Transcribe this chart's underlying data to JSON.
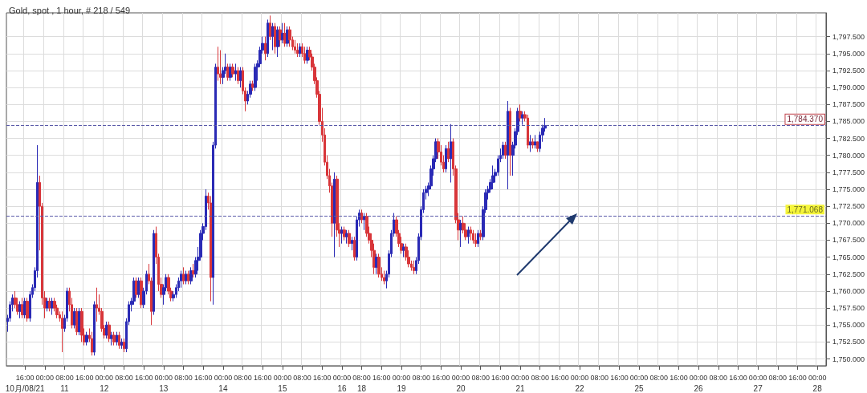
{
  "chart_data": {
    "type": "candlestick",
    "title": "Gold, spot , 1 hour, # 218 / 549",
    "categories": [
      null,
      null,
      null,
      null,
      null,
      null,
      null,
      "16:00\n10月/08/21",
      null,
      null,
      null,
      null,
      null,
      null,
      null,
      "00:00",
      null,
      null,
      null,
      null,
      null,
      null,
      null,
      "08:00\n11",
      null,
      null,
      null,
      null,
      null,
      null,
      null,
      "16:00",
      null,
      null,
      null,
      null,
      null,
      null,
      null,
      "00:00\n12",
      null,
      null,
      null,
      null,
      null,
      null,
      null,
      "08:00",
      null,
      null,
      null,
      null,
      null,
      null,
      null,
      "16:00",
      null,
      null,
      null,
      null,
      null,
      null,
      null,
      "00:00\n13",
      null,
      null,
      null,
      null,
      null,
      null,
      null,
      "08:00",
      null,
      null,
      null,
      null,
      null,
      null,
      null,
      "16:00",
      null,
      null,
      null,
      null,
      null,
      null,
      null,
      "00:00\n14",
      null,
      null,
      null,
      null,
      null,
      null,
      null,
      "08:00",
      null,
      null,
      null,
      null,
      null,
      null,
      null,
      "16:00",
      null,
      null,
      null,
      null,
      null,
      null,
      null,
      "00:00\n15",
      null,
      null,
      null,
      null,
      null,
      null,
      null,
      "08:00",
      null,
      null,
      null,
      null,
      null,
      null,
      null,
      "16:00",
      null,
      null,
      null,
      null,
      null,
      null,
      null,
      "00:00\n16",
      null,
      null,
      null,
      null,
      null,
      null,
      null,
      "08:00\n18",
      null,
      null,
      null,
      null,
      null,
      null,
      null,
      "16:00",
      null,
      null,
      null,
      null,
      null,
      null,
      null,
      "00:00\n19",
      null,
      null,
      null,
      null,
      null,
      null,
      null,
      "08:00",
      null,
      null,
      null,
      null,
      null,
      null,
      null,
      "16:00",
      null,
      null,
      null,
      null,
      null,
      null,
      null,
      "00:00\n20",
      null,
      null,
      null,
      null,
      null,
      null,
      null,
      "08:00",
      null,
      null,
      null,
      null,
      null,
      null,
      null,
      "16:00",
      null,
      null,
      null,
      null,
      null,
      null,
      null,
      "00:00\n21",
      null,
      null,
      null,
      null,
      null,
      null,
      null,
      "08:00",
      null,
      null,
      null,
      null,
      null,
      null,
      null,
      "16:00",
      null,
      null,
      null,
      null,
      null,
      null,
      null,
      "00:00\n22",
      null,
      null,
      null,
      null,
      null,
      null,
      null,
      "08:00",
      null,
      null,
      null,
      null,
      null,
      null,
      null,
      "16:00",
      null,
      null,
      null,
      null,
      null,
      null,
      null,
      "00:00\n25",
      null,
      null,
      null,
      null,
      null,
      null,
      null,
      "08:00",
      null,
      null,
      null,
      null,
      null,
      null,
      null,
      "16:00",
      null,
      null,
      null,
      null,
      null,
      null,
      null,
      "00:00\n26",
      null,
      null,
      null,
      null,
      null,
      null,
      null,
      "08:00",
      null,
      null,
      null,
      null,
      null,
      null,
      null,
      "16:00",
      null,
      null,
      null,
      null,
      null,
      null,
      null,
      "00:00\n27",
      null,
      null,
      null,
      null,
      null,
      null,
      null,
      "08:00",
      null,
      null,
      null,
      null,
      null,
      null,
      null,
      "16:00",
      null,
      null,
      null,
      null,
      null,
      null,
      null,
      "00:00\n28",
      null,
      null,
      null
    ],
    "ohlc": [
      [
        1755.5,
        1756.5,
        1754,
        1756
      ],
      [
        1756,
        1758.5,
        1755.5,
        1758
      ],
      [
        1758,
        1759.5,
        1757,
        1759
      ],
      [
        1759,
        1760,
        1757.5,
        1758
      ],
      [
        1758,
        1759,
        1756.5,
        1757
      ],
      [
        1757,
        1758.5,
        1756,
        1758
      ],
      [
        1758,
        1759,
        1756,
        1756.5
      ],
      [
        1756.5,
        1759,
        1756,
        1758.5
      ],
      [
        1758.5,
        1759,
        1755.5,
        1756
      ],
      [
        1756,
        1760,
        1755.5,
        1759.5
      ],
      [
        1759.5,
        1761,
        1759,
        1760.5
      ],
      [
        1760.5,
        1763.5,
        1760,
        1763
      ],
      [
        1763,
        1781.5,
        1762,
        1776
      ],
      [
        1776,
        1777,
        1766,
        1772.5
      ],
      [
        1772.5,
        1773,
        1758,
        1759
      ],
      [
        1759,
        1760,
        1756,
        1757.5
      ],
      [
        1757.5,
        1759,
        1757,
        1758.5
      ],
      [
        1758.5,
        1759,
        1757,
        1757.5
      ],
      [
        1757.5,
        1759,
        1756.5,
        1758.5
      ],
      [
        1758.5,
        1759,
        1757,
        1757.5
      ],
      [
        1757.5,
        1758,
        1756,
        1756.5
      ],
      [
        1756.5,
        1757,
        1755.5,
        1756
      ],
      [
        1756,
        1757,
        1751,
        1754.5
      ],
      [
        1754.5,
        1756.5,
        1754,
        1756
      ],
      [
        1756,
        1760.5,
        1755.5,
        1760
      ],
      [
        1760,
        1760.5,
        1757,
        1758
      ],
      [
        1758,
        1759,
        1754.5,
        1755
      ],
      [
        1755,
        1757.5,
        1754.5,
        1757
      ],
      [
        1757,
        1757.5,
        1753.5,
        1754
      ],
      [
        1754,
        1757.5,
        1753.5,
        1757
      ],
      [
        1757,
        1757.5,
        1752.5,
        1753.5
      ],
      [
        1753.5,
        1754.5,
        1752,
        1752.5
      ],
      [
        1752.5,
        1754,
        1752,
        1753.5
      ],
      [
        1753.5,
        1754.5,
        1752.5,
        1753
      ],
      [
        1753,
        1754,
        1750.5,
        1751
      ],
      [
        1751,
        1758.5,
        1750.5,
        1758
      ],
      [
        1758,
        1760.5,
        1755.5,
        1757.5
      ],
      [
        1757.5,
        1759.5,
        1756.5,
        1757
      ],
      [
        1757,
        1757.5,
        1754,
        1754.5
      ],
      [
        1754.5,
        1755,
        1753,
        1753.5
      ],
      [
        1753.5,
        1755.5,
        1753,
        1755
      ],
      [
        1755,
        1755.5,
        1752.5,
        1753
      ],
      [
        1753,
        1754,
        1752,
        1753.5
      ],
      [
        1753.5,
        1754,
        1752,
        1752.5
      ],
      [
        1752.5,
        1754,
        1752,
        1753.5
      ],
      [
        1753.5,
        1754,
        1751.5,
        1752
      ],
      [
        1752,
        1753,
        1751.5,
        1752.5
      ],
      [
        1752.5,
        1753,
        1751,
        1751.5
      ],
      [
        1751.5,
        1756,
        1751,
        1755.5
      ],
      [
        1755.5,
        1758.5,
        1755,
        1758
      ],
      [
        1758,
        1759,
        1757,
        1758.5
      ],
      [
        1758.5,
        1762,
        1758,
        1761.5
      ],
      [
        1761.5,
        1762,
        1759,
        1759.5
      ],
      [
        1759.5,
        1762,
        1759,
        1761.5
      ],
      [
        1761.5,
        1762,
        1757.5,
        1758
      ],
      [
        1758,
        1760.5,
        1757.5,
        1760
      ],
      [
        1760,
        1763,
        1759.5,
        1762.5
      ],
      [
        1762.5,
        1764,
        1761,
        1761.5
      ],
      [
        1761.5,
        1762,
        1755,
        1757
      ],
      [
        1757,
        1769,
        1756.5,
        1768.5
      ],
      [
        1768.5,
        1769.5,
        1764,
        1765
      ],
      [
        1765,
        1765.5,
        1760,
        1761
      ],
      [
        1761,
        1762,
        1759,
        1759.5
      ],
      [
        1759.5,
        1761,
        1758,
        1760.5
      ],
      [
        1760.5,
        1762.5,
        1760,
        1762
      ],
      [
        1762,
        1762.5,
        1759.5,
        1760
      ],
      [
        1760,
        1760.5,
        1758.5,
        1759
      ],
      [
        1759,
        1760,
        1758.5,
        1759.5
      ],
      [
        1759.5,
        1761,
        1759,
        1760.5
      ],
      [
        1760.5,
        1762,
        1760,
        1761.5
      ],
      [
        1761.5,
        1763,
        1760.5,
        1762.5
      ],
      [
        1762.5,
        1763.5,
        1761,
        1761.5
      ],
      [
        1761.5,
        1763,
        1761,
        1762.5
      ],
      [
        1762.5,
        1763,
        1761,
        1761.5
      ],
      [
        1761.5,
        1763.5,
        1761,
        1763
      ],
      [
        1763,
        1764,
        1762,
        1762.5
      ],
      [
        1762.5,
        1765,
        1762,
        1764.5
      ],
      [
        1764.5,
        1766.5,
        1763,
        1765
      ],
      [
        1765,
        1769,
        1764.5,
        1768.5
      ],
      [
        1768.5,
        1770,
        1767.5,
        1769.5
      ],
      [
        1769.5,
        1775,
        1769,
        1774
      ],
      [
        1774,
        1774.5,
        1772,
        1773
      ],
      [
        1773,
        1774,
        1758.5,
        1762
      ],
      [
        1762,
        1782,
        1758,
        1781.5
      ],
      [
        1781.5,
        1793.5,
        1781,
        1793
      ],
      [
        1793,
        1796,
        1791,
        1792
      ],
      [
        1792,
        1795.5,
        1790.5,
        1791.5
      ],
      [
        1791.5,
        1793,
        1790.5,
        1792.5
      ],
      [
        1792.5,
        1795,
        1792,
        1793
      ],
      [
        1793,
        1793.5,
        1791,
        1791.5
      ],
      [
        1791.5,
        1793.5,
        1791,
        1793
      ],
      [
        1793,
        1793.5,
        1791.5,
        1792
      ],
      [
        1792,
        1793.5,
        1791,
        1792.5
      ],
      [
        1792.5,
        1793,
        1790.5,
        1791
      ],
      [
        1791,
        1793,
        1790,
        1792.5
      ],
      [
        1792.5,
        1793,
        1789,
        1789.5
      ],
      [
        1789.5,
        1790,
        1786.5,
        1788
      ],
      [
        1788,
        1789.5,
        1787.5,
        1789
      ],
      [
        1789,
        1791,
        1788.5,
        1790.5
      ],
      [
        1790.5,
        1791,
        1789.5,
        1790
      ],
      [
        1790,
        1793.5,
        1789.5,
        1793
      ],
      [
        1793,
        1794,
        1791,
        1793.5
      ],
      [
        1793.5,
        1796,
        1793,
        1795.5
      ],
      [
        1795.5,
        1797.5,
        1795,
        1796.5
      ],
      [
        1796.5,
        1797.5,
        1794,
        1795
      ],
      [
        1795,
        1800,
        1794.5,
        1799.5
      ],
      [
        1799.5,
        1800.6,
        1797,
        1797.5
      ],
      [
        1797.5,
        1799.5,
        1795.5,
        1799
      ],
      [
        1799,
        1799.5,
        1795,
        1796
      ],
      [
        1796,
        1799,
        1794.5,
        1798.5
      ],
      [
        1798.5,
        1799,
        1796,
        1797
      ],
      [
        1797,
        1799.5,
        1796.5,
        1798
      ],
      [
        1798,
        1799.5,
        1796,
        1796.5
      ],
      [
        1796.5,
        1799,
        1796,
        1798.5
      ],
      [
        1798.5,
        1799,
        1796,
        1797
      ],
      [
        1797,
        1797.5,
        1795.5,
        1796
      ],
      [
        1796,
        1797,
        1795,
        1795.5
      ],
      [
        1795.5,
        1796.5,
        1794.5,
        1795
      ],
      [
        1795,
        1796.5,
        1794.5,
        1796
      ],
      [
        1796,
        1796.5,
        1794.5,
        1795
      ],
      [
        1795,
        1796,
        1793.5,
        1794
      ],
      [
        1794,
        1796,
        1793.5,
        1795.5
      ],
      [
        1795.5,
        1796,
        1794,
        1794.5
      ],
      [
        1794.5,
        1795,
        1792.5,
        1793
      ],
      [
        1793,
        1793.5,
        1790.5,
        1791
      ],
      [
        1791,
        1791.5,
        1788.5,
        1789
      ],
      [
        1789,
        1789.5,
        1784.5,
        1785
      ],
      [
        1785,
        1787,
        1782,
        1783
      ],
      [
        1783,
        1784,
        1778.5,
        1779
      ],
      [
        1779,
        1780,
        1776.5,
        1777
      ],
      [
        1777,
        1778,
        1774.5,
        1775.5
      ],
      [
        1775.5,
        1776,
        1768,
        1770
      ],
      [
        1770,
        1777.5,
        1765,
        1776.5
      ],
      [
        1776.5,
        1777,
        1768,
        1769
      ],
      [
        1769,
        1770,
        1766.5,
        1768.5
      ],
      [
        1768.5,
        1769.5,
        1767,
        1769
      ],
      [
        1769,
        1769.5,
        1767.5,
        1768
      ],
      [
        1768,
        1769,
        1767,
        1768.5
      ],
      [
        1768.5,
        1769,
        1766.5,
        1767
      ],
      [
        1767,
        1768,
        1766,
        1767.5
      ],
      [
        1767.5,
        1768,
        1764.5,
        1765
      ],
      [
        1765,
        1771,
        1764.5,
        1770.5
      ],
      [
        1770.5,
        1772,
        1769.5,
        1771.5
      ],
      [
        1771.5,
        1772,
        1770,
        1770.5
      ],
      [
        1770.5,
        1771.5,
        1769,
        1771
      ],
      [
        1771,
        1771.5,
        1768,
        1768.5
      ],
      [
        1768.5,
        1769.5,
        1767,
        1767.5
      ],
      [
        1767.5,
        1768.5,
        1765,
        1766
      ],
      [
        1766,
        1767,
        1762.5,
        1763.5
      ],
      [
        1763.5,
        1765.5,
        1762.5,
        1765
      ],
      [
        1765,
        1765.5,
        1762,
        1762.5
      ],
      [
        1762.5,
        1763.5,
        1761.5,
        1762
      ],
      [
        1762,
        1763,
        1761,
        1761.5
      ],
      [
        1761.5,
        1763,
        1760.4,
        1762.5
      ],
      [
        1762.5,
        1766,
        1762,
        1765.5
      ],
      [
        1765.5,
        1769,
        1765,
        1768.5
      ],
      [
        1768.5,
        1771.5,
        1768,
        1770.5
      ],
      [
        1770.5,
        1771,
        1768,
        1768.5
      ],
      [
        1768.5,
        1769,
        1766.5,
        1767
      ],
      [
        1767,
        1768,
        1765.5,
        1766
      ],
      [
        1766,
        1767,
        1765,
        1766.5
      ],
      [
        1766.5,
        1767,
        1764.5,
        1765
      ],
      [
        1765,
        1766,
        1763.5,
        1764
      ],
      [
        1764,
        1764.5,
        1763,
        1763.5
      ],
      [
        1763.5,
        1764.5,
        1762.5,
        1763
      ],
      [
        1763,
        1765,
        1762.5,
        1764.5
      ],
      [
        1764.5,
        1768.5,
        1764,
        1768
      ],
      [
        1768,
        1772.5,
        1767.5,
        1772
      ],
      [
        1772,
        1775,
        1771.5,
        1774.5
      ],
      [
        1774.5,
        1775.5,
        1773.5,
        1775
      ],
      [
        1775,
        1776,
        1774,
        1775.5
      ],
      [
        1775.5,
        1778.5,
        1775,
        1778
      ],
      [
        1778,
        1780,
        1777,
        1779.5
      ],
      [
        1779.5,
        1782.5,
        1779,
        1782
      ],
      [
        1782,
        1782.5,
        1779.5,
        1780.5
      ],
      [
        1780.5,
        1781.5,
        1778.5,
        1779
      ],
      [
        1779,
        1780,
        1777.5,
        1778
      ],
      [
        1778,
        1781.5,
        1777.5,
        1781
      ],
      [
        1781,
        1782,
        1779,
        1779.5
      ],
      [
        1779.5,
        1784.6,
        1776,
        1782
      ],
      [
        1782,
        1782.5,
        1777,
        1778
      ],
      [
        1778,
        1778.5,
        1770,
        1770.5
      ],
      [
        1770.5,
        1771.5,
        1767.5,
        1769
      ],
      [
        1769,
        1770.5,
        1766.5,
        1770
      ],
      [
        1770,
        1771,
        1768.5,
        1769
      ],
      [
        1769,
        1770,
        1767.5,
        1768
      ],
      [
        1768,
        1769.5,
        1767,
        1769
      ],
      [
        1769,
        1769.5,
        1767.5,
        1768.5
      ],
      [
        1768.5,
        1769,
        1767,
        1767.5
      ],
      [
        1767.5,
        1768.5,
        1766.5,
        1767
      ],
      [
        1767,
        1769,
        1766.5,
        1768.5
      ],
      [
        1768.5,
        1769,
        1767.5,
        1768
      ],
      [
        1768,
        1772.5,
        1767.5,
        1772
      ],
      [
        1772,
        1775,
        1771.5,
        1774.5
      ],
      [
        1774.5,
        1775.5,
        1773.5,
        1775
      ],
      [
        1775,
        1776.5,
        1774.5,
        1776
      ],
      [
        1776,
        1778.5,
        1775,
        1777
      ],
      [
        1777,
        1778,
        1776,
        1777.5
      ],
      [
        1777.5,
        1780,
        1777,
        1779.5
      ],
      [
        1779.5,
        1781,
        1779,
        1780
      ],
      [
        1780,
        1782,
        1779.5,
        1781.5
      ],
      [
        1781.5,
        1782,
        1779.5,
        1780
      ],
      [
        1780,
        1788,
        1775,
        1786.5
      ],
      [
        1786.5,
        1787,
        1777,
        1780
      ],
      [
        1780,
        1782,
        1777,
        1781.5
      ],
      [
        1781.5,
        1784,
        1781,
        1783.5
      ],
      [
        1783.5,
        1787,
        1783,
        1786.5
      ],
      [
        1786.5,
        1787.5,
        1785,
        1785.5
      ],
      [
        1785.5,
        1786.5,
        1784.5,
        1786
      ],
      [
        1786,
        1786.5,
        1785,
        1785.5
      ],
      [
        1785.5,
        1786,
        1781,
        1781.5
      ],
      [
        1781.5,
        1783,
        1780.5,
        1782
      ],
      [
        1782,
        1782.5,
        1781,
        1781.5
      ],
      [
        1781.5,
        1783,
        1781,
        1782
      ],
      [
        1782,
        1782,
        1780.5,
        1781
      ],
      [
        1781,
        1783.5,
        1780.5,
        1783
      ],
      [
        1783,
        1784.5,
        1782,
        1784
      ],
      [
        1784,
        1785.5,
        1783.5,
        1784.37
      ],
      null,
      null,
      null,
      null,
      null,
      null,
      null,
      null,
      null,
      null,
      null,
      null,
      null,
      null,
      null,
      null,
      null,
      null,
      null,
      null,
      null,
      null,
      null,
      null,
      null,
      null,
      null,
      null,
      null,
      null,
      null,
      null,
      null,
      null,
      null,
      null,
      null,
      null,
      null,
      null,
      null,
      null,
      null,
      null,
      null,
      null,
      null,
      null,
      null,
      null,
      null,
      null,
      null,
      null,
      null,
      null,
      null,
      null,
      null,
      null,
      null,
      null,
      null,
      null,
      null,
      null,
      null,
      null,
      null,
      null,
      null,
      null,
      null,
      null,
      null,
      null,
      null,
      null,
      null,
      null,
      null,
      null,
      null,
      null,
      null,
      null,
      null,
      null,
      null,
      null,
      null,
      null,
      null,
      null,
      null,
      null,
      null,
      null,
      null,
      null,
      null,
      null,
      null,
      null,
      null,
      null,
      null,
      null,
      null,
      null,
      null,
      null,
      null
    ],
    "colors": [
      "#2a2ab5",
      "#2a2ab5",
      "#2a2ab5",
      "#d8363a",
      "#d8363a",
      "#2a2ab5",
      "#d8363a",
      "#2a2ab5",
      "#d8363a",
      "#2a2ab5",
      "#2a2ab5",
      "#2a2ab5",
      "#2a2ab5",
      "#d8363a",
      "#d8363a",
      "#d8363a",
      "#2a2ab5",
      "#d8363a",
      "#2a2ab5",
      "#d8363a",
      "#d8363a",
      "#d8363a",
      "#d8363a",
      "#2a2ab5",
      "#2a2ab5",
      "#d8363a",
      "#d8363a",
      "#2a2ab5",
      "#d8363a",
      "#2a2ab5",
      "#d8363a",
      "#d8363a",
      "#2a2ab5",
      "#d8363a",
      "#d8363a",
      "#2a2ab5",
      "#d8363a",
      "#d8363a",
      "#d8363a",
      "#d8363a",
      "#2a2ab5",
      "#d8363a",
      "#2a2ab5",
      "#d8363a",
      "#2a2ab5",
      "#d8363a",
      "#2a2ab5",
      "#d8363a",
      "#2a2ab5",
      "#2a2ab5",
      "#2a2ab5",
      "#2a2ab5",
      "#d8363a",
      "#2a2ab5",
      "#d8363a",
      "#2a2ab5",
      "#2a2ab5",
      "#d8363a",
      "#d8363a",
      "#2a2ab5",
      "#d8363a",
      "#d8363a",
      "#d8363a",
      "#2a2ab5",
      "#2a2ab5",
      "#d8363a",
      "#d8363a",
      "#2a2ab5",
      "#2a2ab5",
      "#2a2ab5",
      "#2a2ab5",
      "#d8363a",
      "#2a2ab5",
      "#d8363a",
      "#2a2ab5",
      "#d8363a",
      "#2a2ab5",
      "#2a2ab5",
      "#2a2ab5",
      "#2a2ab5",
      "#2a2ab5",
      "#d8363a",
      "#d8363a",
      "#2a2ab5",
      "#2a2ab5",
      "#d8363a",
      "#d8363a",
      "#2a2ab5",
      "#2a2ab5",
      "#d8363a",
      "#2a2ab5",
      "#d8363a",
      "#2a2ab5",
      "#d8363a",
      "#2a2ab5",
      "#d8363a",
      "#d8363a",
      "#2a2ab5",
      "#2a2ab5",
      "#d8363a",
      "#2a2ab5",
      "#2a2ab5",
      "#2a2ab5",
      "#2a2ab5",
      "#d8363a",
      "#2a2ab5",
      "#d8363a",
      "#2a2ab5",
      "#d8363a",
      "#2a2ab5",
      "#d8363a",
      "#2a2ab5",
      "#d8363a",
      "#2a2ab5",
      "#d8363a",
      "#d8363a",
      "#d8363a",
      "#d8363a",
      "#2a2ab5",
      "#d8363a",
      "#d8363a",
      "#2a2ab5",
      "#d8363a",
      "#d8363a",
      "#d8363a",
      "#d8363a",
      "#d8363a",
      "#d8363a",
      "#d8363a",
      "#d8363a",
      "#d8363a",
      "#d8363a",
      "#2a2ab5",
      "#d8363a",
      "#d8363a",
      "#2a2ab5",
      "#d8363a",
      "#2a2ab5",
      "#d8363a",
      "#2a2ab5",
      "#d8363a",
      "#2a2ab5",
      "#2a2ab5",
      "#d8363a",
      "#2a2ab5",
      "#d8363a",
      "#d8363a",
      "#d8363a",
      "#d8363a",
      "#2a2ab5",
      "#d8363a",
      "#d8363a",
      "#d8363a",
      "#2a2ab5",
      "#2a2ab5",
      "#2a2ab5",
      "#2a2ab5",
      "#d8363a",
      "#d8363a",
      "#d8363a",
      "#2a2ab5",
      "#d8363a",
      "#d8363a",
      "#d8363a",
      "#d8363a",
      "#2a2ab5",
      "#2a2ab5",
      "#2a2ab5",
      "#2a2ab5",
      "#2a2ab5",
      "#2a2ab5",
      "#2a2ab5",
      "#2a2ab5",
      "#2a2ab5",
      "#d8363a",
      "#d8363a",
      "#d8363a",
      "#2a2ab5",
      "#d8363a",
      "#2a2ab5",
      "#d8363a",
      "#d8363a",
      "#d8363a",
      "#2a2ab5",
      "#d8363a",
      "#d8363a",
      "#2a2ab5",
      "#d8363a",
      "#d8363a",
      "#d8363a",
      "#2a2ab5",
      "#d8363a",
      "#2a2ab5",
      "#2a2ab5",
      "#2a2ab5",
      "#2a2ab5",
      "#2a2ab5",
      "#2a2ab5",
      "#2a2ab5",
      "#2a2ab5",
      "#2a2ab5",
      "#d8363a",
      "#2a2ab5",
      "#d8363a",
      "#2a2ab5",
      "#2a2ab5",
      "#2a2ab5",
      "#d8363a",
      "#2a2ab5",
      "#d8363a",
      "#d8363a",
      "#2a2ab5",
      "#d8363a",
      "#2a2ab5",
      "#d8363a",
      "#2a2ab5",
      "#2a2ab5",
      "#2a2ab5",
      null,
      null,
      null,
      null,
      null,
      null,
      null,
      null,
      null,
      null,
      null,
      null,
      null,
      null,
      null,
      null,
      null,
      null,
      null,
      null,
      null,
      null,
      null,
      null,
      null,
      null,
      null,
      null,
      null,
      null,
      null,
      null,
      null,
      null,
      null,
      null,
      null,
      null,
      null,
      null,
      null,
      null,
      null,
      null,
      null,
      null,
      null,
      null,
      null,
      null,
      null,
      null,
      null,
      null,
      null,
      null,
      null,
      null,
      null,
      null,
      null,
      null,
      null,
      null,
      null,
      null,
      null,
      null,
      null,
      null,
      null,
      null,
      null,
      null,
      null,
      null,
      null,
      null,
      null,
      null,
      null,
      null,
      null,
      null,
      null,
      null,
      null,
      null,
      null,
      null,
      null,
      null,
      null,
      null,
      null,
      null,
      null,
      null,
      null,
      null,
      null,
      null,
      null,
      null,
      null,
      null,
      null,
      null,
      null,
      null,
      null,
      null,
      null
    ],
    "ylim": [
      1749,
      1801
    ],
    "yticks": [
      {
        "value": 1750,
        "label": "1,750.000"
      },
      {
        "value": 1752.5,
        "label": "1,752.500"
      },
      {
        "value": 1755,
        "label": "1,755.000"
      },
      {
        "value": 1757.5,
        "label": "1,757.500"
      },
      {
        "value": 1760,
        "label": "1,760.000"
      },
      {
        "value": 1762.5,
        "label": "1,762.500"
      },
      {
        "value": 1765,
        "label": "1,765.000"
      },
      {
        "value": 1767.5,
        "label": "1,767.500"
      },
      {
        "value": 1770,
        "label": "1,770.000"
      },
      {
        "value": 1772.5,
        "label": "1,772.500"
      },
      {
        "value": 1775,
        "label": "1,775.000"
      },
      {
        "value": 1777.5,
        "label": "1,777.500"
      },
      {
        "value": 1780,
        "label": "1,780.000"
      },
      {
        "value": 1782.5,
        "label": "1,782.500"
      },
      {
        "value": 1785,
        "label": "1,785.000"
      },
      {
        "value": 1787.5,
        "label": "1,787.500"
      },
      {
        "value": 1790,
        "label": "1,790.000"
      },
      {
        "value": 1792.5,
        "label": "1,792.500"
      },
      {
        "value": 1795,
        "label": "1,795.000"
      },
      {
        "value": 1797.5,
        "label": "1,797.500"
      }
    ],
    "ref_lines": [
      {
        "axis": "y",
        "value": 1784.37,
        "label": "1,784.370",
        "color": "#5a5aa8",
        "line_style": "dashed"
      },
      {
        "axis": "y",
        "value": 1771.068,
        "label": "1,771.068",
        "color": "#5a5aa8",
        "line_style": "dashed"
      }
    ],
    "grid": true
  }
}
